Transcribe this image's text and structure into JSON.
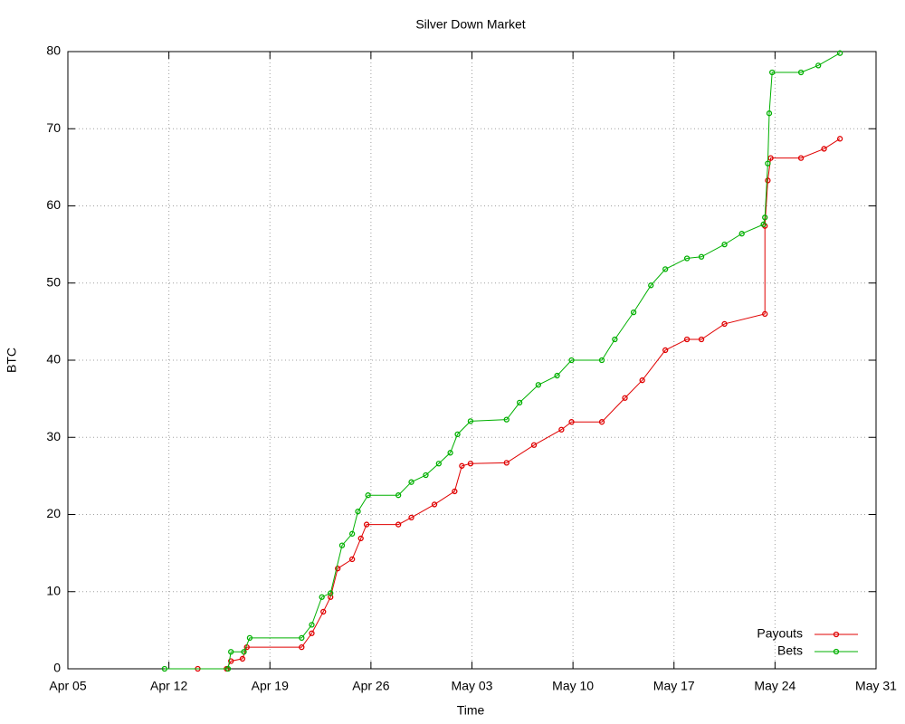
{
  "chart_data": {
    "type": "line",
    "title": "Silver Down Market",
    "x_label": "Time",
    "y_label": "BTC",
    "xlim": [
      0,
      56
    ],
    "xticks": [
      {
        "value": 0,
        "label": "Apr 05"
      },
      {
        "value": 7,
        "label": "Apr 12"
      },
      {
        "value": 14,
        "label": "Apr 19"
      },
      {
        "value": 21,
        "label": "Apr 26"
      },
      {
        "value": 28,
        "label": "May 03"
      },
      {
        "value": 35,
        "label": "May 10"
      },
      {
        "value": 42,
        "label": "May 17"
      },
      {
        "value": 49,
        "label": "May 24"
      },
      {
        "value": 56,
        "label": "May 31"
      }
    ],
    "ylim": [
      0,
      80
    ],
    "yticks": [
      0,
      10,
      20,
      30,
      40,
      50,
      60,
      70,
      80
    ],
    "grid": true,
    "legend": "bottom-right",
    "series": [
      {
        "name": "Payouts",
        "color": "#e00000",
        "x": [
          9.0,
          11.0,
          11.3,
          12.1,
          12.4,
          16.2,
          16.9,
          17.7,
          18.2,
          18.7,
          19.7,
          20.3,
          20.7,
          22.9,
          23.8,
          25.4,
          26.8,
          27.3,
          27.9,
          30.4,
          32.3,
          34.2,
          34.9,
          37.0,
          38.6,
          39.8,
          41.4,
          42.9,
          43.9,
          45.5,
          48.3,
          48.3,
          48.5,
          48.7,
          50.8,
          52.4,
          53.5
        ],
        "values": [
          0,
          0,
          1,
          1.3,
          2.8,
          2.8,
          4.6,
          7.4,
          9.3,
          13,
          14.2,
          16.9,
          18.7,
          18.7,
          19.6,
          21.3,
          23,
          26.3,
          26.6,
          26.7,
          29,
          31,
          32,
          32,
          35.1,
          37.4,
          41.3,
          42.7,
          42.7,
          44.7,
          46,
          57.4,
          63.3,
          66.2,
          66.2,
          67.4,
          68.7
        ]
      },
      {
        "name": "Bets",
        "color": "#00b000",
        "x": [
          6.7,
          11.1,
          11.3,
          12.2,
          12.6,
          16.2,
          16.9,
          17.6,
          18.2,
          19.0,
          19.7,
          20.1,
          20.8,
          22.9,
          23.8,
          24.8,
          25.7,
          26.5,
          27.0,
          27.9,
          30.4,
          31.3,
          32.6,
          33.9,
          34.9,
          37.0,
          37.9,
          39.2,
          40.4,
          41.4,
          42.9,
          43.9,
          45.5,
          46.7,
          48.2,
          48.3,
          48.5,
          48.6,
          48.8,
          50.8,
          52.0,
          53.5
        ],
        "values": [
          0,
          0,
          2.2,
          2.2,
          4,
          4,
          5.7,
          9.3,
          9.8,
          16,
          17.5,
          20.4,
          22.5,
          22.5,
          24.2,
          25.1,
          26.6,
          28,
          30.4,
          32.1,
          32.3,
          34.5,
          36.8,
          38,
          40,
          40,
          42.7,
          46.2,
          49.7,
          51.8,
          53.2,
          53.4,
          55,
          56.4,
          57.6,
          58.5,
          65.5,
          72,
          77.3,
          77.3,
          78.2,
          79.8
        ]
      }
    ]
  }
}
